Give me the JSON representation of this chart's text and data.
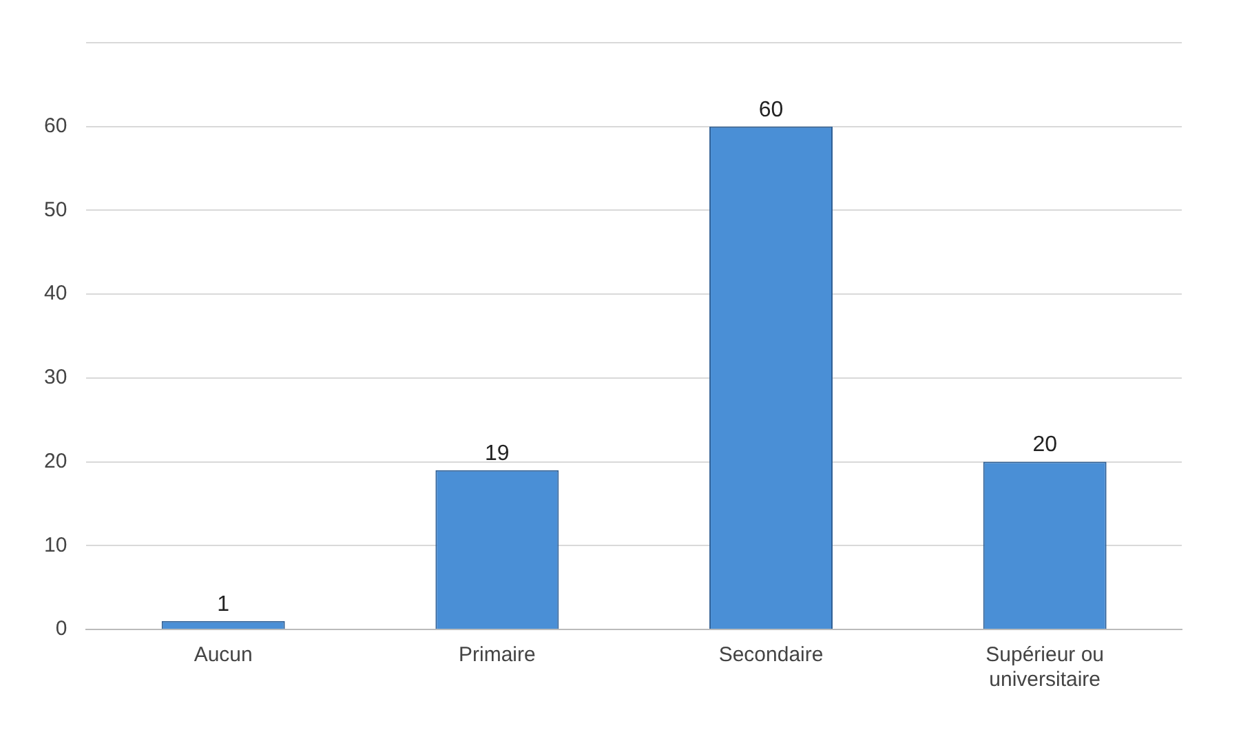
{
  "chart_data": {
    "type": "bar",
    "categories": [
      "Aucun",
      "Primaire",
      "Secondaire",
      "Supérieur ou universitaire"
    ],
    "values": [
      1,
      19,
      60,
      20
    ],
    "color": "#4a8fd6",
    "ylim": [
      0,
      70
    ],
    "yticks": [
      0,
      10,
      20,
      30,
      40,
      50,
      60,
      {
        "value": 70,
        "label": null
      }
    ],
    "grid": "y",
    "data_labels": true
  }
}
